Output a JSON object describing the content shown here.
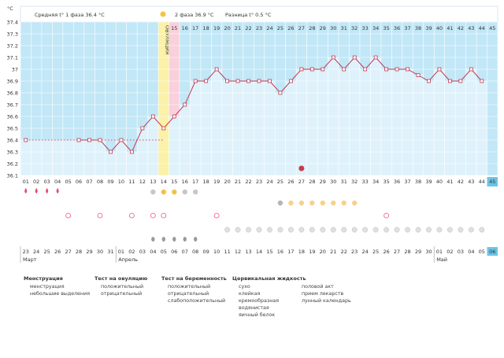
{
  "chart_data": {
    "type": "line",
    "ylabel": "°C",
    "ylim": [
      36.1,
      37.4
    ],
    "yticks": [
      36.1,
      36.2,
      36.3,
      36.4,
      36.5,
      36.6,
      36.7,
      36.8,
      36.9,
      37.0,
      37.1,
      37.2,
      37.3,
      37.4
    ],
    "ytick_labels": [
      "36.1",
      "36.2",
      "36.3",
      "36.4",
      "36.5",
      "36.6",
      "36.7",
      "36.8",
      "36.9",
      "37",
      "37.1",
      "37.2",
      "37.3",
      "37.4"
    ],
    "x": [
      "01",
      "02",
      "03",
      "04",
      "05",
      "06",
      "07",
      "08",
      "09",
      "10",
      "11",
      "12",
      "13",
      "14",
      "15",
      "16",
      "17",
      "18",
      "19",
      "20",
      "21",
      "22",
      "23",
      "24",
      "25",
      "26",
      "27",
      "28",
      "29",
      "30",
      "31",
      "32",
      "33",
      "34",
      "35",
      "36",
      "37",
      "38",
      "39",
      "40",
      "41",
      "42",
      "43",
      "44",
      "45"
    ],
    "values": [
      36.4,
      null,
      null,
      null,
      null,
      36.4,
      36.4,
      36.4,
      36.3,
      36.4,
      36.3,
      36.5,
      36.6,
      36.5,
      36.6,
      36.7,
      36.9,
      36.9,
      37.0,
      36.9,
      36.9,
      36.9,
      36.9,
      36.9,
      36.8,
      36.9,
      37.0,
      37.0,
      37.0,
      37.1,
      37.0,
      37.1,
      37.0,
      37.1,
      37.0,
      37.0,
      37.0,
      36.95,
      36.9,
      37.0,
      36.9,
      36.9,
      37.0,
      36.9,
      null
    ],
    "baseline": 36.4,
    "ovulation_day": "14",
    "ovulation_label": "ОВУЛЯЦИЯ",
    "highlight_day": "15",
    "top_bar": {
      "phase1_label": "Средняя t° 1 фаза",
      "phase1_value": "36.4 °C",
      "phase2_label": "2 фаза",
      "phase2_value": "36.9 °C",
      "diff_label": "Разница t°",
      "diff_value": "0.5 °C"
    },
    "dates": [
      "23",
      "24",
      "25",
      "26",
      "27",
      "28",
      "29",
      "30",
      "31",
      "01",
      "02",
      "03",
      "04",
      "05",
      "06",
      "07",
      "08",
      "09",
      "10",
      "11",
      "12",
      "13",
      "14",
      "15",
      "16",
      "17",
      "18",
      "19",
      "20",
      "21",
      "22",
      "23",
      "24",
      "25",
      "26",
      "27",
      "28",
      "29",
      "30",
      "01",
      "02",
      "03",
      "04",
      "05",
      "06"
    ],
    "red_dates": [
      0,
      6,
      7,
      8,
      13,
      19,
      20,
      26,
      27,
      33,
      34,
      41,
      42,
      43
    ],
    "month_labels": [
      {
        "label": "Март",
        "col": 0
      },
      {
        "label": "Апрель",
        "col": 9
      },
      {
        "label": "Май",
        "col": 39
      }
    ],
    "rows": {
      "menstruation": [
        0,
        1,
        2,
        3
      ],
      "ovulation_test_positive": [
        13,
        14
      ],
      "ovulation_test_negative": [
        12,
        15,
        16
      ],
      "pregnancy_test": [
        25,
        26,
        27,
        28,
        29,
        30,
        31
      ],
      "pregnancy_test_negative": [
        24
      ],
      "intercourse": [
        4,
        7,
        10,
        12,
        13,
        18,
        34
      ],
      "medication": [
        19,
        20,
        21,
        22,
        23,
        24,
        25,
        26,
        27,
        28,
        29,
        30,
        31,
        32,
        33,
        34,
        35,
        36,
        37,
        38,
        39,
        40,
        41,
        42,
        43
      ],
      "mucus": [
        12,
        13,
        14,
        15,
        16
      ],
      "lunar_calendar": [
        26
      ]
    }
  },
  "legend": {
    "menstruation_title": "Менструация",
    "menstruation_items": [
      "менструация",
      "небольшие выделения"
    ],
    "ovulation_title": "Тест на овуляцию",
    "ovulation_items": [
      "положительный",
      "отрицательный"
    ],
    "pregnancy_title": "Тест на беременность",
    "pregnancy_items": [
      "положительный",
      "отрицательный",
      "слабоположительный"
    ],
    "mucus_title": "Цервикальная жидкость",
    "mucus_items": [
      "сухо",
      "клейкая",
      "кремообразная",
      "водянистая",
      "яичный белок"
    ],
    "other_items": [
      "половой акт",
      "прием лекарств",
      "лунный календарь"
    ]
  }
}
